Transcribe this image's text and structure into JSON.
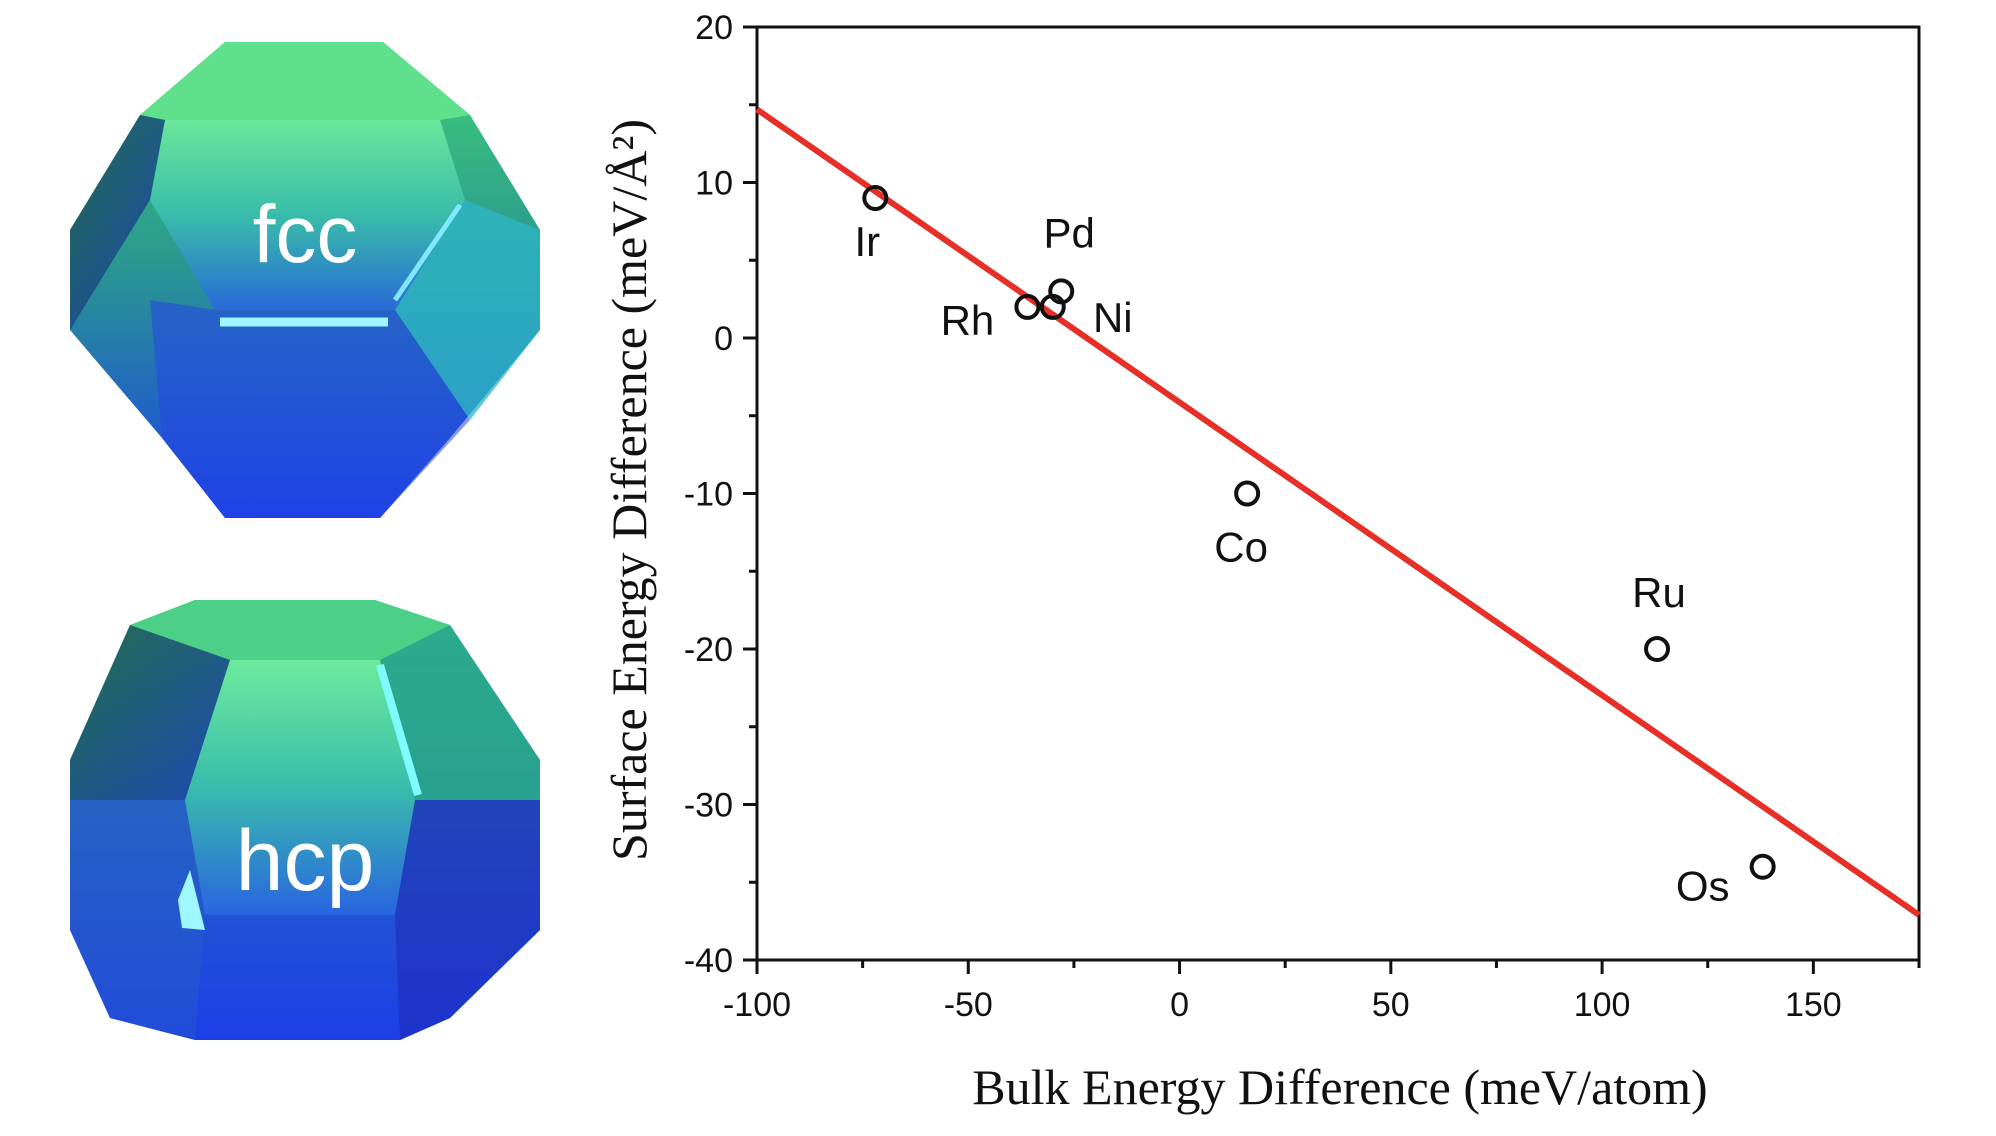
{
  "panel_left": {
    "fcc_label": "fcc",
    "hcp_label": "hcp"
  },
  "chart_data": {
    "type": "scatter",
    "title": "",
    "xlabel": "Bulk Energy Difference (meV/atom)",
    "ylabel": "Surface Energy Difference (meV/Å²)",
    "xlim": [
      -100,
      175
    ],
    "ylim": [
      -40,
      20
    ],
    "xticks": [
      -100,
      -50,
      0,
      50,
      100,
      150
    ],
    "yticks": [
      -40,
      -30,
      -20,
      -10,
      0,
      10,
      20
    ],
    "points": [
      {
        "label": "Ir",
        "x": -72,
        "y": 9
      },
      {
        "label": "Pd",
        "x": -28,
        "y": 3
      },
      {
        "label": "Ni",
        "x": -30,
        "y": 2
      },
      {
        "label": "Rh",
        "x": -36,
        "y": 2
      },
      {
        "label": "Co",
        "x": 16,
        "y": -10
      },
      {
        "label": "Ru",
        "x": 113,
        "y": -20
      },
      {
        "label": "Os",
        "x": 138,
        "y": -34
      }
    ],
    "fit_line": {
      "x": [
        -100,
        175
      ],
      "y": [
        14.7,
        -37.1
      ]
    },
    "fit_color": "#e63027",
    "marker_color": "#111111"
  }
}
